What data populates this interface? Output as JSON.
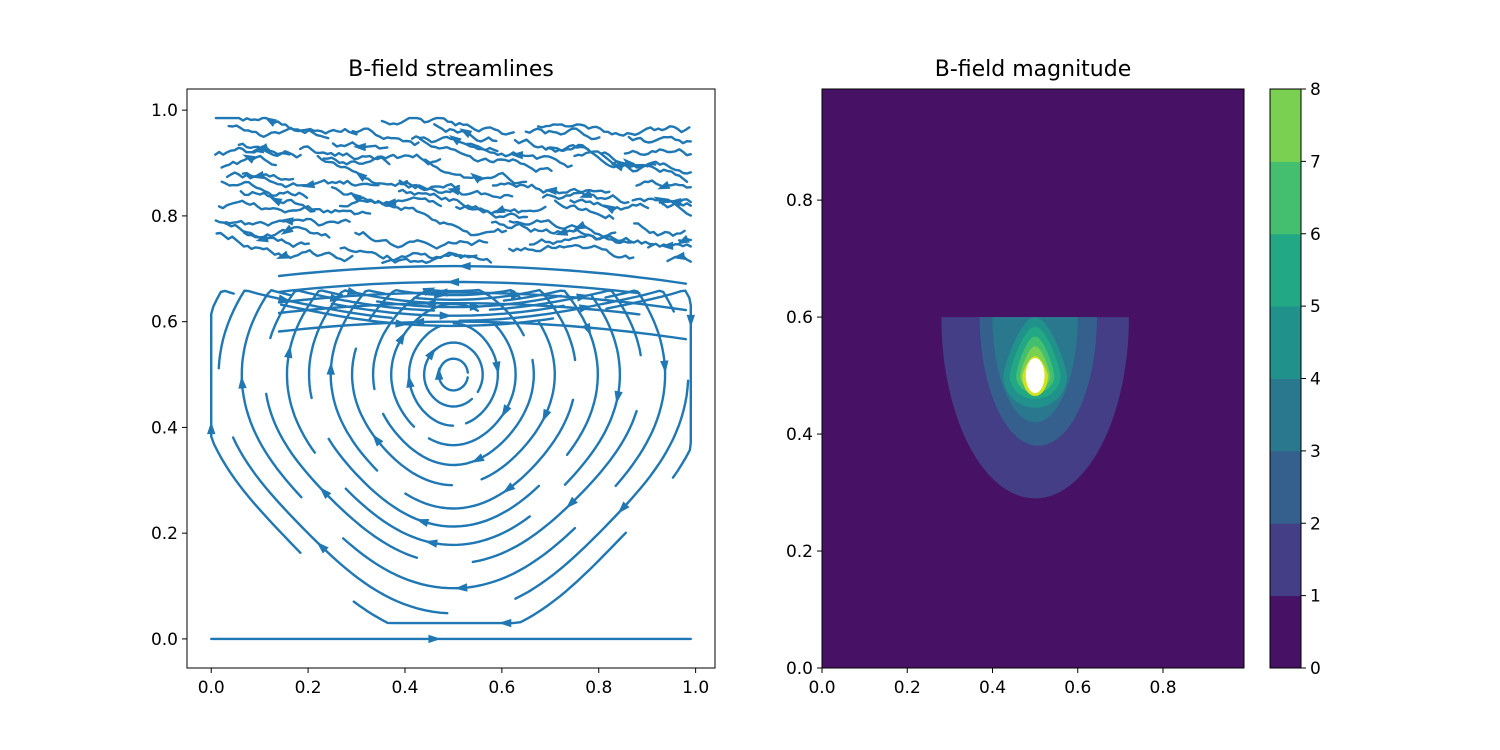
{
  "chart_data": [
    {
      "type": "streamplot",
      "title": "B-field streamlines",
      "xlabel": "",
      "ylabel": "",
      "xlim": [
        -0.05,
        1.04
      ],
      "ylim": [
        -0.055,
        1.04
      ],
      "xticks": [
        0.0,
        0.2,
        0.4,
        0.6,
        0.8,
        1.0
      ],
      "xtick_labels": [
        "0.0",
        "0.2",
        "0.4",
        "0.6",
        "0.8",
        "1.0"
      ],
      "yticks": [
        0.0,
        0.2,
        0.4,
        0.6,
        0.8,
        1.0
      ],
      "ytick_labels": [
        "0.0",
        "0.2",
        "0.4",
        "0.6",
        "0.8",
        "1.0"
      ],
      "grid": false,
      "color": "#1f77b4",
      "field": {
        "vortex_center": [
          0.5,
          0.5
        ],
        "rotation": "clockwise",
        "closed_loop_region_y_max": 0.7,
        "noisy_region_y_range": [
          0.72,
          0.96
        ],
        "bottom_line_y": 0.0,
        "bottom_line_direction": "+x"
      }
    },
    {
      "type": "contourf",
      "title": "B-field magnitude",
      "xlabel": "",
      "ylabel": "",
      "xlim": [
        0.0,
        0.99
      ],
      "ylim": [
        0.0,
        0.99
      ],
      "xticks": [
        0.0,
        0.2,
        0.4,
        0.6,
        0.8
      ],
      "xtick_labels": [
        "0.0",
        "0.2",
        "0.4",
        "0.6",
        "0.8"
      ],
      "yticks": [
        0.0,
        0.2,
        0.4,
        0.6,
        0.8
      ],
      "ytick_labels": [
        "0.0",
        "0.2",
        "0.4",
        "0.6",
        "0.8"
      ],
      "grid": false,
      "levels": [
        0,
        1,
        2,
        3,
        4,
        5,
        6,
        7,
        8
      ],
      "level_colors": [
        "#471265",
        "#433e85",
        "#35608d",
        "#2a788e",
        "#21918c",
        "#22a884",
        "#44bf70",
        "#7ad151",
        "#d2e21b"
      ],
      "over_max_color": "#ffffff",
      "source_center": [
        0.5,
        0.5
      ],
      "region_top": 0.6,
      "contours": [
        {
          "level": 1,
          "x_range": [
            0.28,
            0.72
          ],
          "y_min": 0.29
        },
        {
          "level": 2,
          "x_range": [
            0.37,
            0.645
          ],
          "y_min": 0.38
        },
        {
          "level": 3,
          "x_range": [
            0.4,
            0.6
          ],
          "y_min": 0.42
        },
        {
          "level": 4,
          "x_range": [
            0.425,
            0.575
          ],
          "y_min": 0.445
        },
        {
          "level": 5,
          "x_range": [
            0.44,
            0.56
          ],
          "y_min": 0.46
        },
        {
          "level": 6,
          "x_range": [
            0.455,
            0.545
          ],
          "y_min": 0.47
        },
        {
          "level": 7,
          "x_range": [
            0.465,
            0.535
          ],
          "y_min": 0.475
        },
        {
          "level": 8,
          "x_range": [
            0.47,
            0.53
          ],
          "y_min": 0.465
        }
      ],
      "colorbar": {
        "ticks": [
          0,
          1,
          2,
          3,
          4,
          5,
          6,
          7,
          8
        ],
        "tick_labels": [
          "0",
          "1",
          "2",
          "3",
          "4",
          "5",
          "6",
          "7",
          "8"
        ],
        "placement": "right"
      }
    }
  ]
}
